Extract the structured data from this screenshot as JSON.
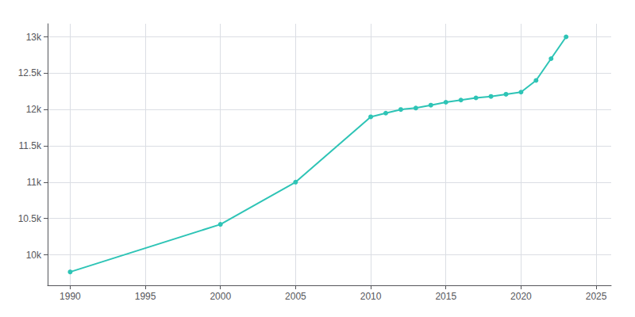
{
  "chart_data": {
    "type": "line",
    "x": [
      1990,
      2000,
      2005,
      2010,
      2011,
      2012,
      2013,
      2014,
      2015,
      2016,
      2017,
      2018,
      2019,
      2020,
      2021,
      2022,
      2023
    ],
    "values": [
      9764,
      10419,
      11000,
      11899,
      11950,
      12000,
      12020,
      12060,
      12100,
      12130,
      12160,
      12180,
      12210,
      12239,
      12400,
      12700,
      13000
    ],
    "color": "#2ec4b6",
    "marker": "circle",
    "xlim": [
      1988.5,
      2026
    ],
    "ylim": [
      9580,
      13180
    ],
    "xticks": [
      1990,
      1995,
      2000,
      2005,
      2010,
      2015,
      2020,
      2025
    ],
    "yticks": [
      {
        "value": 10000,
        "label": "10k"
      },
      {
        "value": 10500,
        "label": "10.5k"
      },
      {
        "value": 11000,
        "label": "11k"
      },
      {
        "value": 11500,
        "label": "11.5k"
      },
      {
        "value": 12000,
        "label": "12k"
      },
      {
        "value": 12500,
        "label": "12.5k"
      },
      {
        "value": 13000,
        "label": "13k"
      }
    ],
    "grid": true
  }
}
